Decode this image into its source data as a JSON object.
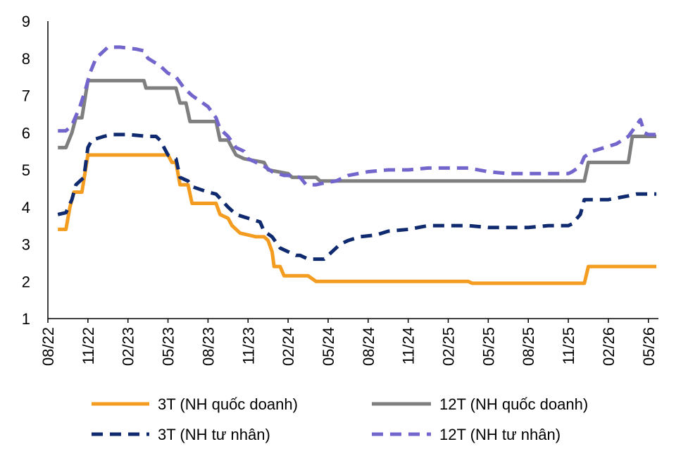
{
  "chart_data": {
    "type": "line",
    "title": "",
    "xlabel": "",
    "ylabel": "",
    "ylim": [
      1,
      9
    ],
    "yticks": [
      "1",
      "2",
      "3",
      "4",
      "5",
      "6",
      "7",
      "8",
      "9"
    ],
    "xticks": [
      "08/22",
      "11/22",
      "02/23",
      "05/23",
      "08/23",
      "11/23",
      "02/24",
      "05/24",
      "08/24",
      "11/24",
      "02/25",
      "05/25",
      "08/25",
      "11/25",
      "02/26",
      "05/26"
    ],
    "xlim": [
      0,
      15.2
    ],
    "grid": false,
    "legend_position": "bottom",
    "series": [
      {
        "name": "3T (NH quốc doanh)",
        "color": "#F39C1F",
        "style": "solid",
        "points": [
          [
            0.25,
            3.4
          ],
          [
            0.45,
            3.4
          ],
          [
            0.55,
            4.0
          ],
          [
            0.65,
            4.4
          ],
          [
            0.85,
            4.4
          ],
          [
            1.0,
            5.4
          ],
          [
            1.5,
            5.4
          ],
          [
            2.0,
            5.4
          ],
          [
            2.5,
            5.4
          ],
          [
            3.0,
            5.4
          ],
          [
            3.1,
            5.2
          ],
          [
            3.2,
            5.2
          ],
          [
            3.3,
            4.6
          ],
          [
            3.5,
            4.6
          ],
          [
            3.6,
            4.1
          ],
          [
            4.2,
            4.1
          ],
          [
            4.3,
            3.8
          ],
          [
            4.5,
            3.7
          ],
          [
            4.6,
            3.5
          ],
          [
            4.8,
            3.3
          ],
          [
            5.2,
            3.2
          ],
          [
            5.4,
            3.2
          ],
          [
            5.5,
            3.1
          ],
          [
            5.6,
            2.8
          ],
          [
            5.65,
            2.4
          ],
          [
            5.8,
            2.4
          ],
          [
            5.9,
            2.15
          ],
          [
            6.5,
            2.15
          ],
          [
            6.7,
            2.0
          ],
          [
            10.5,
            2.0
          ],
          [
            10.6,
            1.95
          ],
          [
            13.4,
            1.95
          ],
          [
            13.5,
            2.4
          ],
          [
            15.2,
            2.4
          ]
        ]
      },
      {
        "name": "12T (NH quốc doanh)",
        "color": "#7F7F7F",
        "style": "solid",
        "points": [
          [
            0.25,
            5.6
          ],
          [
            0.45,
            5.6
          ],
          [
            0.6,
            6.0
          ],
          [
            0.7,
            6.4
          ],
          [
            0.85,
            6.4
          ],
          [
            1.0,
            7.4
          ],
          [
            2.4,
            7.4
          ],
          [
            2.45,
            7.2
          ],
          [
            3.2,
            7.2
          ],
          [
            3.3,
            6.8
          ],
          [
            3.45,
            6.8
          ],
          [
            3.55,
            6.3
          ],
          [
            4.2,
            6.3
          ],
          [
            4.3,
            5.8
          ],
          [
            4.5,
            5.8
          ],
          [
            4.6,
            5.6
          ],
          [
            4.7,
            5.4
          ],
          [
            4.9,
            5.3
          ],
          [
            5.4,
            5.2
          ],
          [
            5.5,
            5.0
          ],
          [
            6.0,
            4.9
          ],
          [
            6.1,
            4.8
          ],
          [
            6.7,
            4.8
          ],
          [
            6.8,
            4.7
          ],
          [
            13.4,
            4.7
          ],
          [
            13.5,
            5.2
          ],
          [
            14.5,
            5.2
          ],
          [
            14.6,
            5.9
          ],
          [
            15.2,
            5.9
          ]
        ]
      },
      {
        "name": "3T (NH tư nhân)",
        "color": "#0F2A6E",
        "style": "dashed",
        "points": [
          [
            0.25,
            3.8
          ],
          [
            0.45,
            3.85
          ],
          [
            0.6,
            4.2
          ],
          [
            0.7,
            4.6
          ],
          [
            0.9,
            4.8
          ],
          [
            1.0,
            5.6
          ],
          [
            1.1,
            5.8
          ],
          [
            1.4,
            5.9
          ],
          [
            1.6,
            5.95
          ],
          [
            2.0,
            5.95
          ],
          [
            2.5,
            5.9
          ],
          [
            2.7,
            5.9
          ],
          [
            2.8,
            5.8
          ],
          [
            3.0,
            5.4
          ],
          [
            3.2,
            5.3
          ],
          [
            3.3,
            4.8
          ],
          [
            3.5,
            4.7
          ],
          [
            3.6,
            4.55
          ],
          [
            4.0,
            4.4
          ],
          [
            4.2,
            4.35
          ],
          [
            4.5,
            4.0
          ],
          [
            4.7,
            3.8
          ],
          [
            5.0,
            3.7
          ],
          [
            5.3,
            3.6
          ],
          [
            5.4,
            3.35
          ],
          [
            5.6,
            3.2
          ],
          [
            5.8,
            2.9
          ],
          [
            6.0,
            2.8
          ],
          [
            6.2,
            2.7
          ],
          [
            6.3,
            2.7
          ],
          [
            6.5,
            2.6
          ],
          [
            6.9,
            2.6
          ],
          [
            7.1,
            2.8
          ],
          [
            7.3,
            3.0
          ],
          [
            7.5,
            3.1
          ],
          [
            7.8,
            3.2
          ],
          [
            8.2,
            3.25
          ],
          [
            8.5,
            3.35
          ],
          [
            9.0,
            3.4
          ],
          [
            9.5,
            3.5
          ],
          [
            10.0,
            3.5
          ],
          [
            10.5,
            3.5
          ],
          [
            11.0,
            3.45
          ],
          [
            11.5,
            3.45
          ],
          [
            12.0,
            3.45
          ],
          [
            12.5,
            3.5
          ],
          [
            13.0,
            3.5
          ],
          [
            13.1,
            3.55
          ],
          [
            13.3,
            3.8
          ],
          [
            13.4,
            4.2
          ],
          [
            13.7,
            4.2
          ],
          [
            14.0,
            4.2
          ],
          [
            14.5,
            4.3
          ],
          [
            14.7,
            4.35
          ],
          [
            15.2,
            4.35
          ]
        ]
      },
      {
        "name": "12T (NH tư nhân)",
        "color": "#7266CC",
        "style": "dashed",
        "points": [
          [
            0.25,
            6.05
          ],
          [
            0.45,
            6.05
          ],
          [
            0.6,
            6.2
          ],
          [
            0.8,
            6.7
          ],
          [
            0.95,
            7.2
          ],
          [
            1.05,
            7.6
          ],
          [
            1.2,
            8.0
          ],
          [
            1.3,
            8.1
          ],
          [
            1.5,
            8.3
          ],
          [
            1.8,
            8.3
          ],
          [
            2.2,
            8.25
          ],
          [
            2.4,
            8.2
          ],
          [
            2.5,
            8.0
          ],
          [
            2.8,
            7.8
          ],
          [
            3.0,
            7.6
          ],
          [
            3.2,
            7.5
          ],
          [
            3.4,
            7.2
          ],
          [
            3.6,
            7.0
          ],
          [
            4.0,
            6.7
          ],
          [
            4.2,
            6.4
          ],
          [
            4.3,
            6.1
          ],
          [
            4.5,
            5.9
          ],
          [
            4.7,
            5.6
          ],
          [
            4.9,
            5.5
          ],
          [
            5.0,
            5.3
          ],
          [
            5.2,
            5.2
          ],
          [
            5.4,
            5.1
          ],
          [
            5.6,
            4.95
          ],
          [
            5.9,
            4.85
          ],
          [
            6.0,
            4.85
          ],
          [
            6.3,
            4.8
          ],
          [
            6.45,
            4.6
          ],
          [
            6.7,
            4.6
          ],
          [
            6.9,
            4.65
          ],
          [
            7.2,
            4.7
          ],
          [
            7.5,
            4.85
          ],
          [
            8.0,
            4.95
          ],
          [
            8.5,
            5.0
          ],
          [
            9.0,
            5.0
          ],
          [
            9.5,
            5.05
          ],
          [
            10.0,
            5.05
          ],
          [
            10.5,
            5.05
          ],
          [
            11.0,
            4.95
          ],
          [
            11.5,
            4.9
          ],
          [
            12.0,
            4.9
          ],
          [
            12.5,
            4.9
          ],
          [
            13.0,
            4.9
          ],
          [
            13.1,
            4.95
          ],
          [
            13.3,
            5.1
          ],
          [
            13.4,
            5.35
          ],
          [
            13.6,
            5.5
          ],
          [
            13.9,
            5.6
          ],
          [
            14.2,
            5.7
          ],
          [
            14.5,
            5.9
          ],
          [
            14.7,
            6.2
          ],
          [
            14.8,
            6.35
          ],
          [
            14.9,
            6.0
          ],
          [
            15.0,
            5.95
          ],
          [
            15.2,
            5.95
          ]
        ]
      }
    ]
  }
}
